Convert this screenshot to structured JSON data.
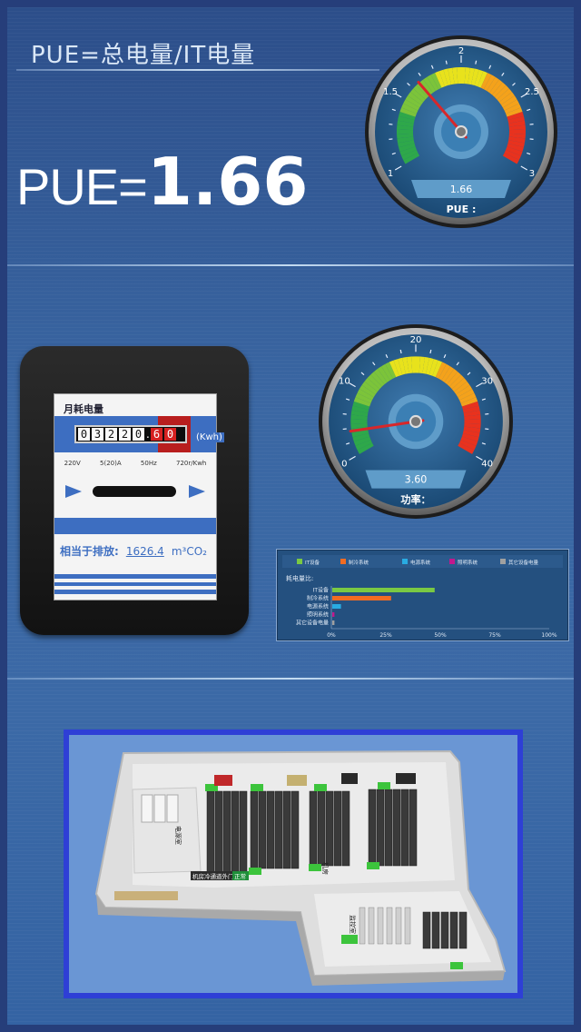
{
  "pue": {
    "formula": "PUE=总电量/IT电量",
    "label": "PUE=",
    "value": "1.66"
  },
  "pue_gauge": {
    "ticks": [
      "1",
      "1.5",
      "2",
      "2.5",
      "3"
    ],
    "readout": "1.66",
    "caption": "PUE :",
    "value": 1.66,
    "min": 1,
    "max": 3
  },
  "power_gauge": {
    "ticks": [
      "0",
      "10",
      "20",
      "30",
      "40"
    ],
    "readout": "3.60",
    "caption": "功率：",
    "value": 3.6,
    "min": 0,
    "max": 40
  },
  "meter": {
    "title": "月耗电量",
    "digits": [
      "0",
      "3",
      "2",
      "2",
      "0",
      "6",
      "0"
    ],
    "decimal_point": ".",
    "unit": "(Kwh)",
    "specs": [
      "220V",
      "5(20)A",
      "50Hz",
      "720r/Kwh"
    ],
    "equiv_label": "相当于排放:",
    "equiv_value": "1626.4",
    "equiv_unit": "m³CO₂"
  },
  "chart_data": {
    "type": "bar",
    "title": "耗电量比:",
    "legend": [
      "IT设备",
      "制冷系统",
      "电源系统",
      "照明系统",
      "其它设备电量"
    ],
    "categories": [
      "IT设备",
      "制冷系统",
      "电源系统",
      "照明系统",
      "其它设备电量"
    ],
    "values": [
      47,
      27,
      4,
      1,
      1
    ],
    "xticks": [
      "0%",
      "25%",
      "50%",
      "75%",
      "100%"
    ],
    "xlim": [
      0,
      100
    ],
    "colors": [
      "#7ac943",
      "#f26c22",
      "#29abe2",
      "#c2188d",
      "#a0a0a0"
    ],
    "legend_position": "top"
  },
  "floorplan": {
    "room_label_1": "电源室",
    "room_label_2": "机房",
    "room_label_3": "监控室",
    "status_text": "机房冷通道外门",
    "status_badge": "正常"
  },
  "colors": {
    "background": "#3a67a3",
    "frame": "#2e3fd6"
  }
}
